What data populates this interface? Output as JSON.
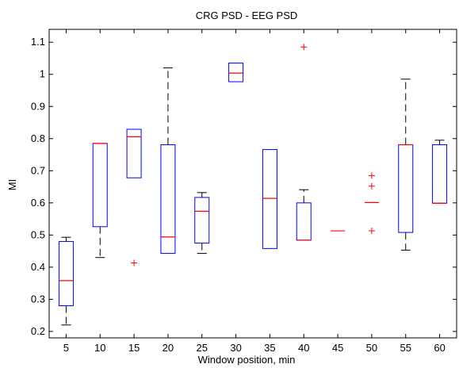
{
  "chart_data": {
    "type": "boxplot",
    "title": "CRG PSD - EEG PSD",
    "xlabel": "Window position, min",
    "ylabel": "MI",
    "categories": [
      "5",
      "10",
      "15",
      "20",
      "25",
      "30",
      "35",
      "40",
      "45",
      "50",
      "55",
      "60"
    ],
    "ylim": [
      0.18,
      1.14
    ],
    "yticks": [
      0.2,
      0.3,
      0.4,
      0.5,
      0.6,
      0.7,
      0.8,
      0.9,
      1,
      1.1
    ],
    "ytick_labels": [
      "0.2",
      "0.3",
      "0.4",
      "0.5",
      "0.6",
      "0.7",
      "0.8",
      "0.9",
      "1",
      "1.1"
    ],
    "boxes": [
      {
        "category": "5",
        "whisker_low": 0.22,
        "q1": 0.28,
        "median": 0.358,
        "q3": 0.48,
        "whisker_high": 0.493,
        "outliers": []
      },
      {
        "category": "10",
        "whisker_low": 0.43,
        "q1": 0.526,
        "median": 0.785,
        "q3": 0.785,
        "whisker_high": 0.785,
        "outliers": []
      },
      {
        "category": "15",
        "whisker_low": 0.678,
        "q1": 0.678,
        "median": 0.806,
        "q3": 0.829,
        "whisker_high": 0.829,
        "outliers": [
          0.413
        ]
      },
      {
        "category": "20",
        "whisker_low": 0.443,
        "q1": 0.443,
        "median": 0.494,
        "q3": 0.781,
        "whisker_high": 1.02,
        "outliers": []
      },
      {
        "category": "25",
        "whisker_low": 0.443,
        "q1": 0.475,
        "median": 0.574,
        "q3": 0.617,
        "whisker_high": 0.632,
        "outliers": []
      },
      {
        "category": "30",
        "whisker_low": 0.977,
        "q1": 0.977,
        "median": 1.004,
        "q3": 1.035,
        "whisker_high": 1.035,
        "outliers": []
      },
      {
        "category": "35",
        "whisker_low": 0.458,
        "q1": 0.458,
        "median": 0.614,
        "q3": 0.766,
        "whisker_high": 0.766,
        "outliers": []
      },
      {
        "category": "40",
        "whisker_low": 0.484,
        "q1": 0.484,
        "median": 0.484,
        "q3": 0.6,
        "whisker_high": 0.641,
        "outliers": [
          1.085
        ]
      },
      {
        "category": "45",
        "whisker_low": 0.513,
        "q1": 0.513,
        "median": 0.513,
        "q3": 0.513,
        "whisker_high": 0.513,
        "outliers": []
      },
      {
        "category": "50",
        "whisker_low": 0.601,
        "q1": 0.601,
        "median": 0.601,
        "q3": 0.601,
        "whisker_high": 0.601,
        "outliers": [
          0.685,
          0.652,
          0.513
        ]
      },
      {
        "category": "55",
        "whisker_low": 0.453,
        "q1": 0.508,
        "median": 0.781,
        "q3": 0.781,
        "whisker_high": 0.985,
        "outliers": []
      },
      {
        "category": "60",
        "whisker_low": 0.599,
        "q1": 0.599,
        "median": 0.599,
        "q3": 0.781,
        "whisker_high": 0.795,
        "outliers": []
      }
    ],
    "colors": {
      "box": "#0000ff",
      "median": "#ff0000",
      "whisker": "#000000",
      "outlier": "#ff0000",
      "axis": "#000000"
    },
    "grid": false,
    "legend": "none"
  }
}
